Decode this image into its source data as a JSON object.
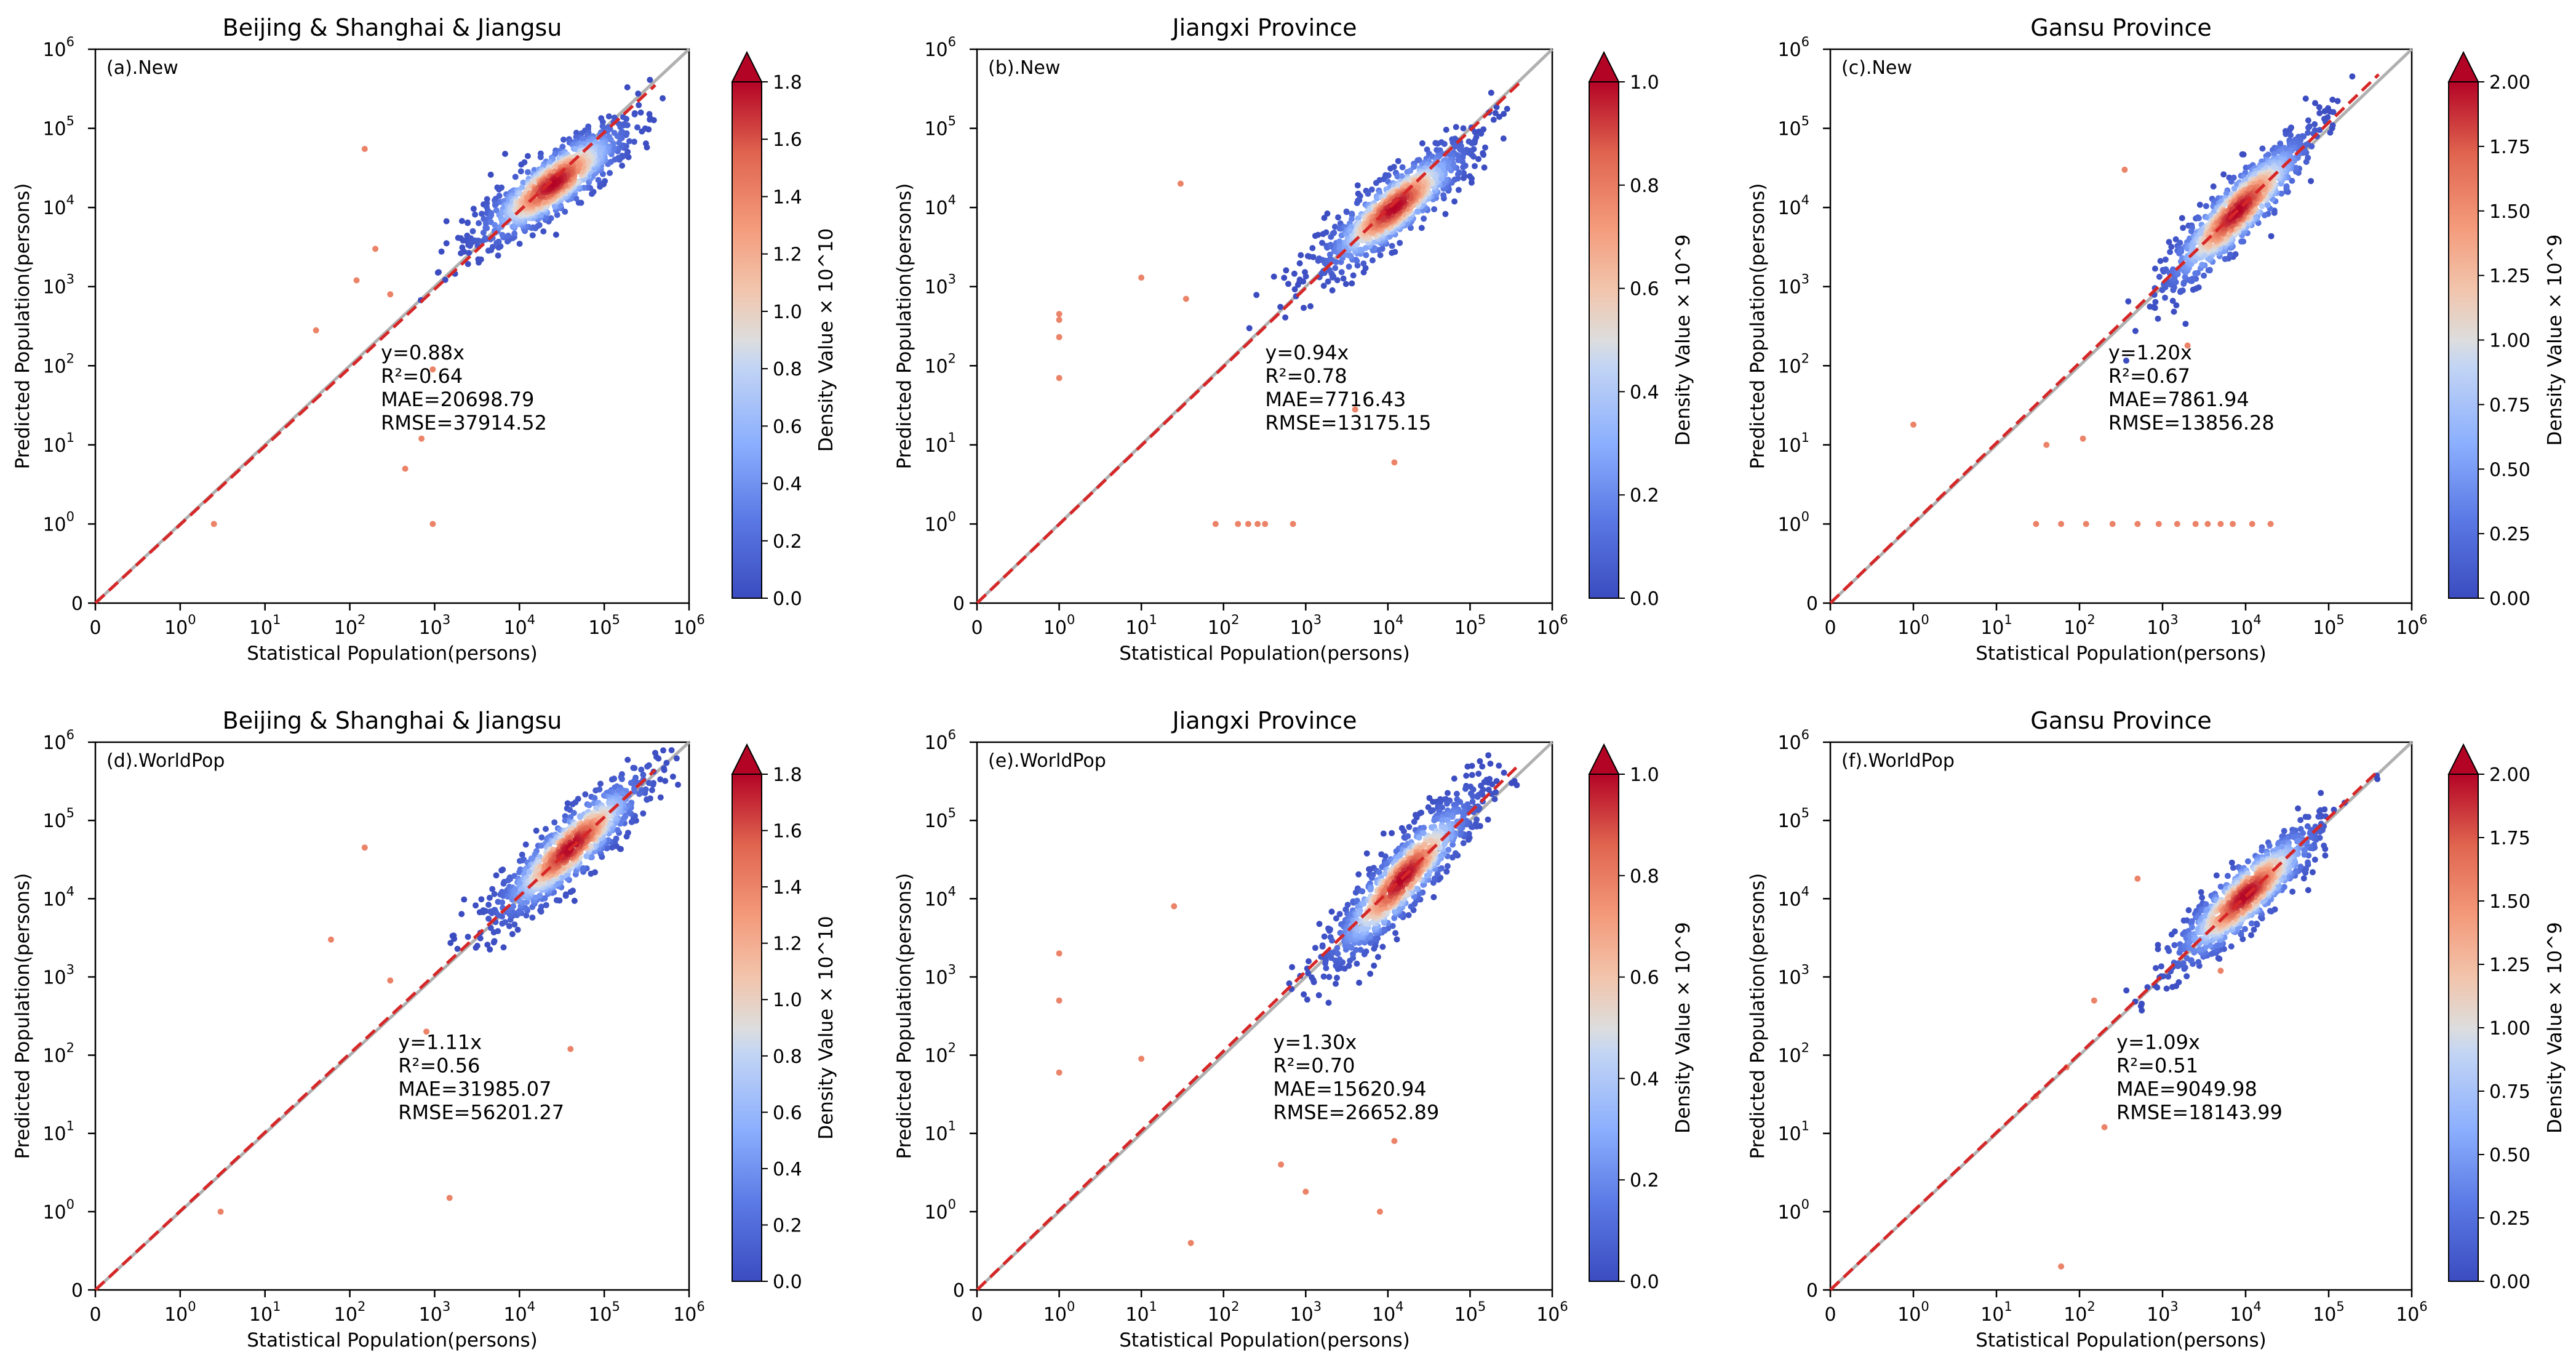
{
  "figure": {
    "xlabel": "Statistical Population(persons)",
    "ylabel": "Predicted Population(persons)",
    "colors": {
      "fit_line": "#d62728",
      "identity_line": "#b0b0b0",
      "cmap_low": "#3b4cc0",
      "cmap_mid": "#dddddd",
      "cmap_high": "#b40426"
    }
  },
  "chart_data": [
    {
      "id": "a",
      "type": "scatter",
      "title": "Beijing & Shanghai & Jiangsu",
      "tag": "(a).New",
      "xscale": "symlog",
      "yscale": "symlog",
      "xlim": [
        0,
        1000000
      ],
      "ylim": [
        0,
        1000000
      ],
      "xlabel": "Statistical Population(persons)",
      "ylabel": "Predicted Population(persons)",
      "x_ticks": [
        {
          "v": 0,
          "base": "0",
          "exp": ""
        },
        {
          "v": 1,
          "base": "10",
          "exp": "0"
        },
        {
          "v": 10,
          "base": "10",
          "exp": "1"
        },
        {
          "v": 100,
          "base": "10",
          "exp": "2"
        },
        {
          "v": 1000,
          "base": "10",
          "exp": "3"
        },
        {
          "v": 10000,
          "base": "10",
          "exp": "4"
        },
        {
          "v": 100000,
          "base": "10",
          "exp": "5"
        },
        {
          "v": 1000000,
          "base": "10",
          "exp": "6"
        }
      ],
      "y_ticks": [
        {
          "v": 0,
          "base": "0",
          "exp": ""
        },
        {
          "v": 1,
          "base": "10",
          "exp": "0"
        },
        {
          "v": 10,
          "base": "10",
          "exp": "1"
        },
        {
          "v": 100,
          "base": "10",
          "exp": "2"
        },
        {
          "v": 1000,
          "base": "10",
          "exp": "3"
        },
        {
          "v": 10000,
          "base": "10",
          "exp": "4"
        },
        {
          "v": 100000,
          "base": "10",
          "exp": "5"
        },
        {
          "v": 1000000,
          "base": "10",
          "exp": "6"
        }
      ],
      "fit_slope": 0.88,
      "stats": [
        "y=0.88x",
        "R²=0.64",
        "MAE=20698.79",
        "RMSE=37914.52"
      ],
      "colorbar": {
        "label": "Density Value × 10^10",
        "min": 0.0,
        "max": 1.8,
        "ticks": [
          "0.0",
          "0.2",
          "0.4",
          "0.6",
          "0.8",
          "1.0",
          "1.2",
          "1.4",
          "1.6",
          "1.8"
        ],
        "extend": "max"
      },
      "cluster": {
        "center": [
          25000,
          20000
        ],
        "spread": 0.7,
        "slope": 0.88
      },
      "outliers": [
        [
          2.5,
          1
        ],
        [
          40,
          280
        ],
        [
          450,
          5
        ],
        [
          950,
          1
        ],
        [
          700,
          12
        ],
        [
          950,
          90
        ],
        [
          150,
          55000
        ],
        [
          200,
          3000
        ],
        [
          300,
          800
        ],
        [
          120,
          1200
        ]
      ]
    },
    {
      "id": "b",
      "type": "scatter",
      "title": "Jiangxi Province",
      "tag": "(b).New",
      "xscale": "symlog",
      "yscale": "symlog",
      "xlim": [
        0,
        1000000
      ],
      "ylim": [
        0,
        1000000
      ],
      "xlabel": "Statistical Population(persons)",
      "ylabel": "Predicted Population(persons)",
      "x_ticks": [
        {
          "v": 0,
          "base": "0",
          "exp": ""
        },
        {
          "v": 1,
          "base": "10",
          "exp": "0"
        },
        {
          "v": 10,
          "base": "10",
          "exp": "1"
        },
        {
          "v": 100,
          "base": "10",
          "exp": "2"
        },
        {
          "v": 1000,
          "base": "10",
          "exp": "3"
        },
        {
          "v": 10000,
          "base": "10",
          "exp": "4"
        },
        {
          "v": 100000,
          "base": "10",
          "exp": "5"
        },
        {
          "v": 1000000,
          "base": "10",
          "exp": "6"
        }
      ],
      "y_ticks": [
        {
          "v": 0,
          "base": "0",
          "exp": ""
        },
        {
          "v": 1,
          "base": "10",
          "exp": "0"
        },
        {
          "v": 10,
          "base": "10",
          "exp": "1"
        },
        {
          "v": 100,
          "base": "10",
          "exp": "2"
        },
        {
          "v": 1000,
          "base": "10",
          "exp": "3"
        },
        {
          "v": 10000,
          "base": "10",
          "exp": "4"
        },
        {
          "v": 100000,
          "base": "10",
          "exp": "5"
        },
        {
          "v": 1000000,
          "base": "10",
          "exp": "6"
        }
      ],
      "fit_slope": 0.94,
      "stats": [
        "y=0.94x",
        "R²=0.78",
        "MAE=7716.43",
        "RMSE=13175.15"
      ],
      "colorbar": {
        "label": "Density Value × 10^9",
        "min": 0.0,
        "max": 1.0,
        "ticks": [
          "0.0",
          "0.2",
          "0.4",
          "0.6",
          "0.8",
          "1.0"
        ],
        "extend": "max"
      },
      "cluster": {
        "center": [
          12000,
          10000
        ],
        "spread": 0.7,
        "slope": 0.94
      },
      "outliers": [
        [
          1,
          450
        ],
        [
          1,
          380
        ],
        [
          1,
          230
        ],
        [
          1,
          70
        ],
        [
          80,
          1
        ],
        [
          150,
          1
        ],
        [
          200,
          1
        ],
        [
          260,
          1
        ],
        [
          320,
          1
        ],
        [
          700,
          1
        ],
        [
          30,
          20000
        ],
        [
          10,
          1300
        ],
        [
          35,
          700
        ],
        [
          4000,
          28
        ],
        [
          12000,
          6
        ]
      ]
    },
    {
      "id": "c",
      "type": "scatter",
      "title": "Gansu Province",
      "tag": "(c).New",
      "xscale": "symlog",
      "yscale": "symlog",
      "xlim": [
        0,
        1000000
      ],
      "ylim": [
        0,
        1000000
      ],
      "xlabel": "Statistical Population(persons)",
      "ylabel": "Predicted Population(persons)",
      "x_ticks": [
        {
          "v": 0,
          "base": "0",
          "exp": ""
        },
        {
          "v": 1,
          "base": "10",
          "exp": "0"
        },
        {
          "v": 10,
          "base": "10",
          "exp": "1"
        },
        {
          "v": 100,
          "base": "10",
          "exp": "2"
        },
        {
          "v": 1000,
          "base": "10",
          "exp": "3"
        },
        {
          "v": 10000,
          "base": "10",
          "exp": "4"
        },
        {
          "v": 100000,
          "base": "10",
          "exp": "5"
        },
        {
          "v": 1000000,
          "base": "10",
          "exp": "6"
        }
      ],
      "y_ticks": [
        {
          "v": 0,
          "base": "0",
          "exp": ""
        },
        {
          "v": 1,
          "base": "10",
          "exp": "0"
        },
        {
          "v": 10,
          "base": "10",
          "exp": "1"
        },
        {
          "v": 100,
          "base": "10",
          "exp": "2"
        },
        {
          "v": 1000,
          "base": "10",
          "exp": "3"
        },
        {
          "v": 10000,
          "base": "10",
          "exp": "4"
        },
        {
          "v": 100000,
          "base": "10",
          "exp": "5"
        },
        {
          "v": 1000000,
          "base": "10",
          "exp": "6"
        }
      ],
      "fit_slope": 1.2,
      "stats": [
        "y=1.20x",
        "R²=0.67",
        "MAE=7861.94",
        "RMSE=13856.28"
      ],
      "colorbar": {
        "label": "Density Value × 10^9",
        "min": 0.0,
        "max": 2.0,
        "ticks": [
          "0.00",
          "0.25",
          "0.50",
          "0.75",
          "1.00",
          "1.25",
          "1.50",
          "1.75",
          "2.00"
        ],
        "extend": "max"
      },
      "cluster": {
        "center": [
          8000,
          9000
        ],
        "spread": 0.65,
        "slope": 1.2
      },
      "outliers": [
        [
          30,
          1
        ],
        [
          60,
          1
        ],
        [
          120,
          1
        ],
        [
          250,
          1
        ],
        [
          500,
          1
        ],
        [
          900,
          1
        ],
        [
          1500,
          1
        ],
        [
          2500,
          1
        ],
        [
          3500,
          1
        ],
        [
          5000,
          1
        ],
        [
          7000,
          1
        ],
        [
          12000,
          1
        ],
        [
          20000,
          1
        ],
        [
          1,
          18
        ],
        [
          350,
          30000
        ],
        [
          40,
          10
        ],
        [
          110,
          12
        ],
        [
          2000,
          180
        ]
      ]
    },
    {
      "id": "d",
      "type": "scatter",
      "title": "Beijing & Shanghai & Jiangsu",
      "tag": "(d).WorldPop",
      "xscale": "symlog",
      "yscale": "symlog",
      "xlim": [
        0,
        1000000
      ],
      "ylim": [
        0,
        1000000
      ],
      "xlabel": "Statistical Population(persons)",
      "ylabel": "Predicted Population(persons)",
      "x_ticks": [
        {
          "v": 0,
          "base": "0",
          "exp": ""
        },
        {
          "v": 1,
          "base": "10",
          "exp": "0"
        },
        {
          "v": 10,
          "base": "10",
          "exp": "1"
        },
        {
          "v": 100,
          "base": "10",
          "exp": "2"
        },
        {
          "v": 1000,
          "base": "10",
          "exp": "3"
        },
        {
          "v": 10000,
          "base": "10",
          "exp": "4"
        },
        {
          "v": 100000,
          "base": "10",
          "exp": "5"
        },
        {
          "v": 1000000,
          "base": "10",
          "exp": "6"
        }
      ],
      "y_ticks": [
        {
          "v": 0,
          "base": "0",
          "exp": ""
        },
        {
          "v": 1,
          "base": "10",
          "exp": "0"
        },
        {
          "v": 10,
          "base": "10",
          "exp": "1"
        },
        {
          "v": 100,
          "base": "10",
          "exp": "2"
        },
        {
          "v": 1000,
          "base": "10",
          "exp": "3"
        },
        {
          "v": 10000,
          "base": "10",
          "exp": "4"
        },
        {
          "v": 100000,
          "base": "10",
          "exp": "5"
        },
        {
          "v": 1000000,
          "base": "10",
          "exp": "6"
        }
      ],
      "fit_slope": 1.11,
      "stats": [
        "y=1.11x",
        "R²=0.56",
        "MAE=31985.07",
        "RMSE=56201.27"
      ],
      "colorbar": {
        "label": "Density Value × 10^10",
        "min": 0.0,
        "max": 1.8,
        "ticks": [
          "0.0",
          "0.2",
          "0.4",
          "0.6",
          "0.8",
          "1.0",
          "1.2",
          "1.4",
          "1.6",
          "1.8"
        ],
        "extend": "max"
      },
      "cluster": {
        "center": [
          40000,
          45000
        ],
        "spread": 0.7,
        "slope": 1.11
      },
      "outliers": [
        [
          3,
          1
        ],
        [
          1500,
          1.5
        ],
        [
          150,
          45000
        ],
        [
          60,
          3000
        ],
        [
          40000,
          120
        ],
        [
          800,
          200
        ],
        [
          300,
          900
        ]
      ]
    },
    {
      "id": "e",
      "type": "scatter",
      "title": "Jiangxi Province",
      "tag": "(e).WorldPop",
      "xscale": "symlog",
      "yscale": "symlog",
      "xlim": [
        0,
        1000000
      ],
      "ylim": [
        0,
        1000000
      ],
      "xlabel": "Statistical Population(persons)",
      "ylabel": "Predicted Population(persons)",
      "x_ticks": [
        {
          "v": 0,
          "base": "0",
          "exp": ""
        },
        {
          "v": 1,
          "base": "10",
          "exp": "0"
        },
        {
          "v": 10,
          "base": "10",
          "exp": "1"
        },
        {
          "v": 100,
          "base": "10",
          "exp": "2"
        },
        {
          "v": 1000,
          "base": "10",
          "exp": "3"
        },
        {
          "v": 10000,
          "base": "10",
          "exp": "4"
        },
        {
          "v": 100000,
          "base": "10",
          "exp": "5"
        },
        {
          "v": 1000000,
          "base": "10",
          "exp": "6"
        }
      ],
      "y_ticks": [
        {
          "v": 0,
          "base": "0",
          "exp": ""
        },
        {
          "v": 1,
          "base": "10",
          "exp": "0"
        },
        {
          "v": 10,
          "base": "10",
          "exp": "1"
        },
        {
          "v": 100,
          "base": "10",
          "exp": "2"
        },
        {
          "v": 1000,
          "base": "10",
          "exp": "3"
        },
        {
          "v": 10000,
          "base": "10",
          "exp": "4"
        },
        {
          "v": 100000,
          "base": "10",
          "exp": "5"
        },
        {
          "v": 1000000,
          "base": "10",
          "exp": "6"
        }
      ],
      "fit_slope": 1.3,
      "stats": [
        "y=1.30x",
        "R²=0.70",
        "MAE=15620.94",
        "RMSE=26652.89"
      ],
      "colorbar": {
        "label": "Density Value × 10^9",
        "min": 0.0,
        "max": 1.0,
        "ticks": [
          "0.0",
          "0.2",
          "0.4",
          "0.6",
          "0.8",
          "1.0"
        ],
        "extend": "max"
      },
      "cluster": {
        "center": [
          15000,
          18000
        ],
        "spread": 0.75,
        "slope": 1.3
      },
      "outliers": [
        [
          1,
          2000
        ],
        [
          1,
          500
        ],
        [
          1,
          60
        ],
        [
          40,
          0.6
        ],
        [
          10,
          90
        ],
        [
          1000,
          1.8
        ],
        [
          8000,
          1
        ],
        [
          12000,
          8
        ],
        [
          500,
          4
        ],
        [
          25,
          8000
        ]
      ]
    },
    {
      "id": "f",
      "type": "scatter",
      "title": "Gansu Province",
      "tag": "(f).WorldPop",
      "xscale": "symlog",
      "yscale": "symlog",
      "xlim": [
        0,
        1000000
      ],
      "ylim": [
        0,
        1000000
      ],
      "xlabel": "Statistical Population(persons)",
      "ylabel": "Predicted Population(persons)",
      "x_ticks": [
        {
          "v": 0,
          "base": "0",
          "exp": ""
        },
        {
          "v": 1,
          "base": "10",
          "exp": "0"
        },
        {
          "v": 10,
          "base": "10",
          "exp": "1"
        },
        {
          "v": 100,
          "base": "10",
          "exp": "2"
        },
        {
          "v": 1000,
          "base": "10",
          "exp": "3"
        },
        {
          "v": 10000,
          "base": "10",
          "exp": "4"
        },
        {
          "v": 100000,
          "base": "10",
          "exp": "5"
        },
        {
          "v": 1000000,
          "base": "10",
          "exp": "6"
        }
      ],
      "y_ticks": [
        {
          "v": 0,
          "base": "0",
          "exp": ""
        },
        {
          "v": 1,
          "base": "10",
          "exp": "0"
        },
        {
          "v": 10,
          "base": "10",
          "exp": "1"
        },
        {
          "v": 100,
          "base": "10",
          "exp": "2"
        },
        {
          "v": 1000,
          "base": "10",
          "exp": "3"
        },
        {
          "v": 10000,
          "base": "10",
          "exp": "4"
        },
        {
          "v": 100000,
          "base": "10",
          "exp": "5"
        },
        {
          "v": 1000000,
          "base": "10",
          "exp": "6"
        }
      ],
      "fit_slope": 1.09,
      "stats": [
        "y=1.09x",
        "R²=0.51",
        "MAE=9049.98",
        "RMSE=18143.99"
      ],
      "colorbar": {
        "label": "Density Value × 10^9",
        "min": 0.0,
        "max": 2.0,
        "ticks": [
          "0.00",
          "0.25",
          "0.50",
          "0.75",
          "1.00",
          "1.25",
          "1.50",
          "1.75",
          "2.00"
        ],
        "extend": "max"
      },
      "cluster": {
        "center": [
          10000,
          11000
        ],
        "spread": 0.65,
        "slope": 1.09
      },
      "outliers": [
        [
          60,
          0.3
        ],
        [
          500,
          18000
        ],
        [
          30,
          30
        ],
        [
          70,
          70
        ],
        [
          200,
          12
        ],
        [
          5000,
          1200
        ],
        [
          150,
          500
        ]
      ]
    }
  ]
}
